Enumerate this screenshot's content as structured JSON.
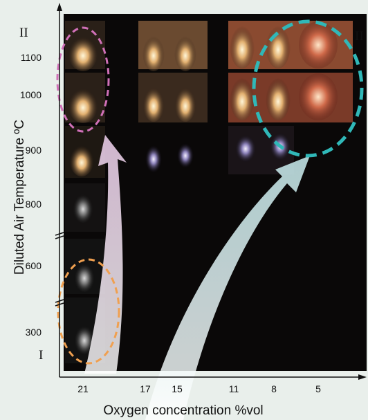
{
  "figure": {
    "y_title": "Diluted Air Temperature ºC",
    "y_ticks": [
      "1100",
      "1000",
      "900",
      "800",
      "600",
      "300"
    ],
    "x_title": "Oxygen concentration %vol",
    "x_ticks": [
      "21",
      "17",
      "15",
      "11",
      "8",
      "5"
    ],
    "regions": [
      "II",
      "II",
      "I"
    ]
  }
}
